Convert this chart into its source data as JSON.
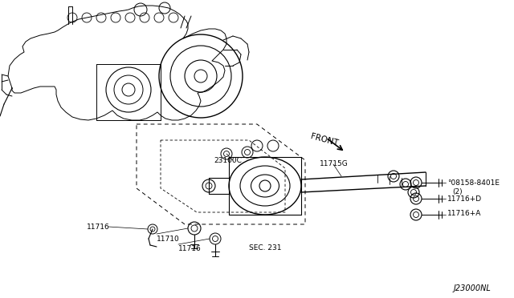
{
  "background_color": "#ffffff",
  "fig_width": 6.4,
  "fig_height": 3.72,
  "dpi": 100,
  "labels": {
    "front_label": "FRONT",
    "part_23100C": "23100C",
    "part_11715G": "11715G",
    "part_08158_8401E": "°08158-8401E",
    "part_08158_qty": "(2)",
    "part_11716_D": "11716+D",
    "part_11716_A": "11716+A",
    "part_11716_left": "11716",
    "part_11710": "11710",
    "part_11716_bottom": "11716",
    "sec_231": "SEC. 231",
    "drawing_no": "J23000NL"
  },
  "lw_thin": 0.6,
  "lw_med": 0.9,
  "lw_thick": 1.2
}
